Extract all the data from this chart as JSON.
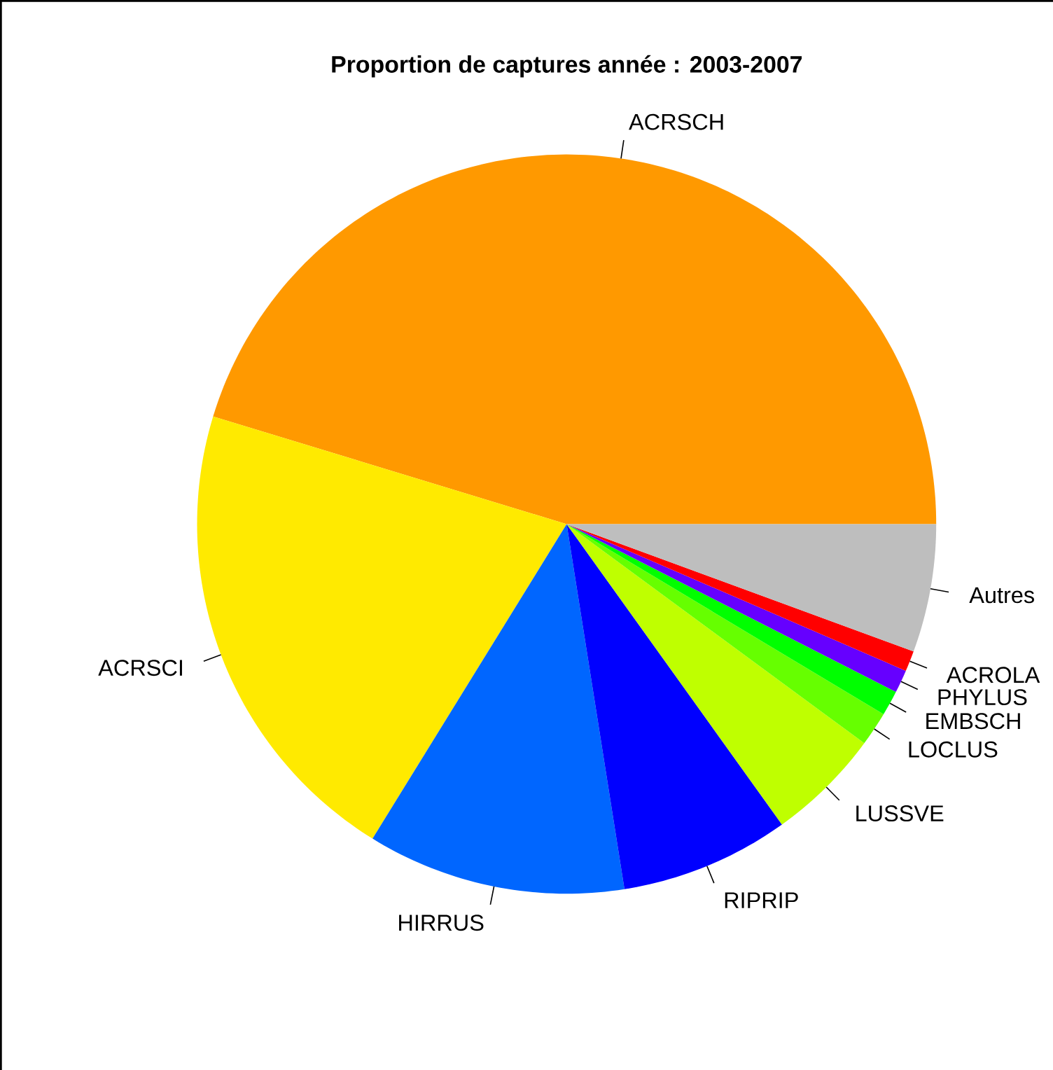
{
  "chart_data": {
    "type": "pie",
    "title": "Proportion de captures année : 2003-2007",
    "categories": [
      "ACRSCH",
      "ACRSCI",
      "HIRRUS",
      "RIPRIP",
      "LUSSVE",
      "LOCLUS",
      "EMBSCH",
      "PHYLUS",
      "ACROLA",
      "Autres"
    ],
    "values": [
      45.3,
      20.9,
      11.3,
      7.4,
      5.0,
      1.5,
      1.1,
      1.0,
      0.9,
      5.6
    ],
    "colors": [
      "#ff9900",
      "#ffea00",
      "#0066ff",
      "#0000ff",
      "#bfff00",
      "#66ff00",
      "#00ff00",
      "#6600ff",
      "#ff0000",
      "#bebebe"
    ]
  }
}
